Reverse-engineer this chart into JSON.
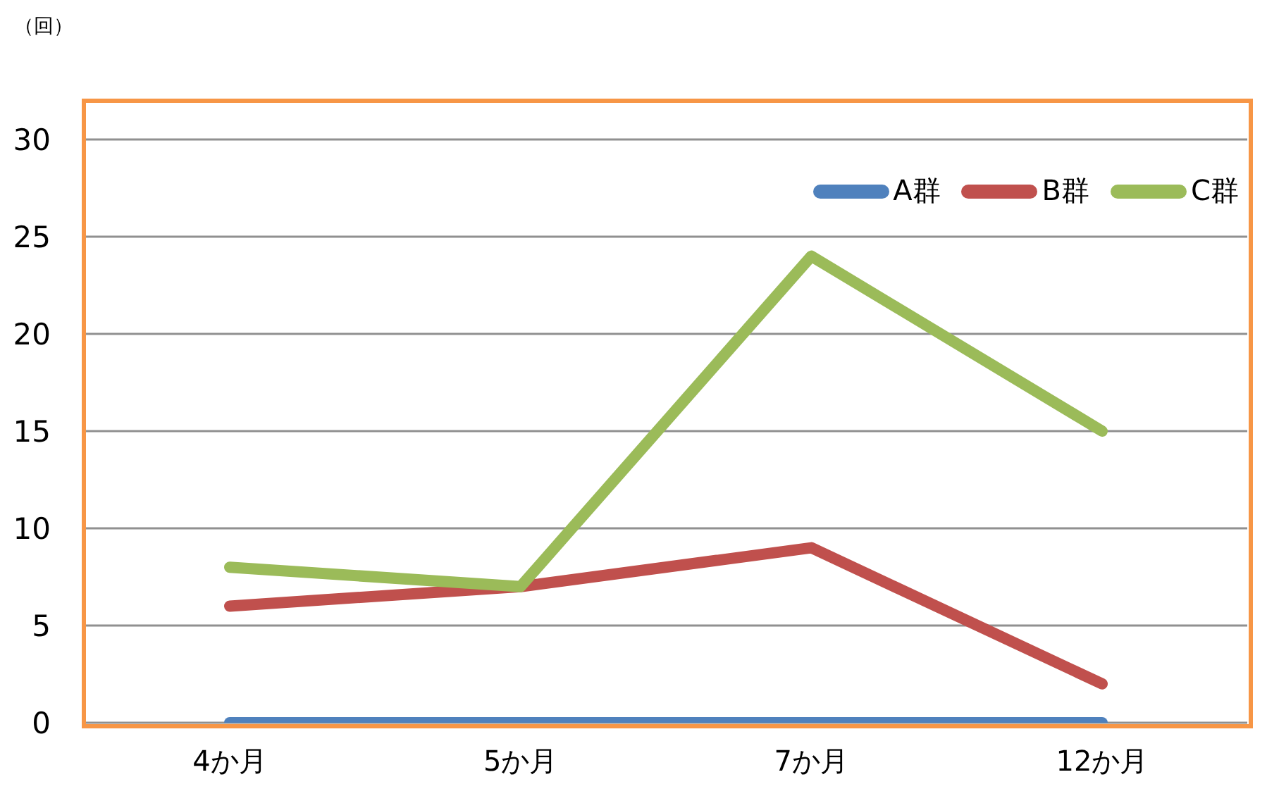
{
  "chart_data": {
    "type": "line",
    "ylabel": "（回）",
    "categories": [
      "4か月",
      "5か月",
      "7か月",
      "12か月"
    ],
    "series": [
      {
        "name": "A群",
        "color": "#4f81bd",
        "values": [
          0,
          0,
          0,
          0
        ]
      },
      {
        "name": "B群",
        "color": "#c0504d",
        "values": [
          6,
          7,
          9,
          2
        ]
      },
      {
        "name": "C群",
        "color": "#9bbb59",
        "values": [
          8,
          7,
          24,
          15
        ]
      }
    ],
    "ylim": [
      0,
      30
    ],
    "yticks": [
      0,
      5,
      10,
      15,
      20,
      25,
      30
    ],
    "grid": "y",
    "legend": "top right"
  }
}
